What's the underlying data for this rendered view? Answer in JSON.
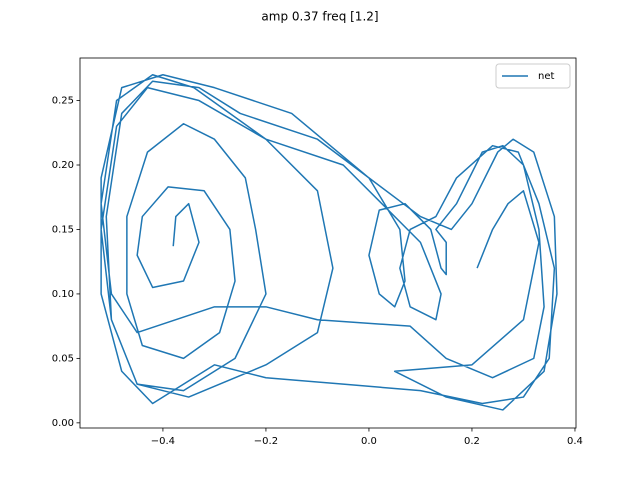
{
  "chart_data": {
    "type": "line",
    "title": "amp 0.37 freq [1.2]",
    "x": [
      -0.38,
      -0.375,
      -0.35,
      -0.33,
      -0.36,
      -0.42,
      -0.45,
      -0.44,
      -0.39,
      -0.32,
      -0.27,
      -0.26,
      -0.29,
      -0.36,
      -0.44,
      -0.47,
      -0.47,
      -0.43,
      -0.36,
      -0.3,
      -0.24,
      -0.22,
      -0.2,
      -0.26,
      -0.36,
      -0.45,
      -0.5,
      -0.51,
      -0.48,
      -0.42,
      -0.33,
      -0.25,
      -0.1,
      0.0,
      0.06,
      0.07,
      0.05,
      0.02,
      0.0,
      0.02,
      0.07,
      0.12,
      0.14,
      0.15,
      0.15,
      0.13,
      0.17,
      0.22,
      0.26,
      0.3,
      0.33,
      0.34,
      0.32,
      0.24,
      0.15,
      0.08,
      -0.1,
      -0.2,
      -0.3,
      -0.45,
      -0.5,
      -0.52,
      -0.49,
      -0.42,
      -0.34,
      -0.2,
      -0.1,
      -0.07,
      -0.1,
      -0.2,
      -0.35,
      -0.45,
      -0.5,
      -0.52,
      -0.49,
      -0.43,
      -0.33,
      -0.2,
      -0.05,
      0.1,
      0.14,
      0.13,
      0.08,
      0.06,
      0.08,
      0.13,
      0.17,
      0.24,
      0.29,
      0.33,
      0.36,
      0.35,
      0.3,
      0.22,
      0.1,
      -0.05,
      -0.2,
      -0.3,
      -0.42,
      -0.48,
      -0.52,
      -0.52,
      -0.48,
      -0.4,
      -0.3,
      -0.15,
      0.0,
      0.1,
      0.16,
      0.2,
      0.25,
      0.28,
      0.32,
      0.36,
      0.365,
      0.34,
      0.26,
      0.15,
      0.05,
      0.2,
      0.3,
      0.33,
      0.3,
      0.27,
      0.24,
      0.21
    ],
    "series": [
      {
        "name": "net",
        "color": "#1f77b4",
        "values": [
          0.137,
          0.16,
          0.17,
          0.14,
          0.11,
          0.105,
          0.13,
          0.16,
          0.183,
          0.18,
          0.15,
          0.11,
          0.07,
          0.05,
          0.06,
          0.1,
          0.16,
          0.21,
          0.232,
          0.22,
          0.19,
          0.15,
          0.1,
          0.05,
          0.025,
          0.03,
          0.08,
          0.16,
          0.24,
          0.265,
          0.26,
          0.24,
          0.22,
          0.19,
          0.15,
          0.11,
          0.09,
          0.1,
          0.13,
          0.165,
          0.17,
          0.15,
          0.12,
          0.115,
          0.14,
          0.15,
          0.17,
          0.21,
          0.215,
          0.2,
          0.15,
          0.09,
          0.05,
          0.035,
          0.05,
          0.075,
          0.08,
          0.09,
          0.09,
          0.07,
          0.1,
          0.17,
          0.25,
          0.27,
          0.26,
          0.22,
          0.18,
          0.12,
          0.07,
          0.045,
          0.02,
          0.03,
          0.08,
          0.15,
          0.23,
          0.26,
          0.25,
          0.22,
          0.2,
          0.14,
          0.1,
          0.08,
          0.09,
          0.12,
          0.15,
          0.16,
          0.19,
          0.215,
          0.21,
          0.17,
          0.12,
          0.05,
          0.02,
          0.015,
          0.025,
          0.03,
          0.035,
          0.045,
          0.015,
          0.04,
          0.1,
          0.19,
          0.26,
          0.27,
          0.26,
          0.24,
          0.19,
          0.16,
          0.15,
          0.17,
          0.21,
          0.22,
          0.21,
          0.16,
          0.1,
          0.04,
          0.01,
          0.02,
          0.04,
          0.045,
          0.08,
          0.14,
          0.18,
          0.17,
          0.15,
          0.12
        ]
      }
    ],
    "xlim": [
      -0.561,
      0.402
    ],
    "xticks": [
      {
        "value": -0.4,
        "label": "−0.4"
      },
      {
        "value": -0.2,
        "label": "−0.2"
      },
      {
        "value": 0.0,
        "label": "0.0"
      },
      0.2,
      0.4
    ],
    "ylim": [
      -0.004,
      0.283
    ],
    "yticks": [
      {
        "value": 0.0,
        "label": "0.00"
      },
      0.05,
      {
        "value": 0.1,
        "label": "0.10"
      },
      0.15,
      {
        "value": 0.2,
        "label": "0.20"
      },
      0.25
    ],
    "legend": "upper right"
  }
}
